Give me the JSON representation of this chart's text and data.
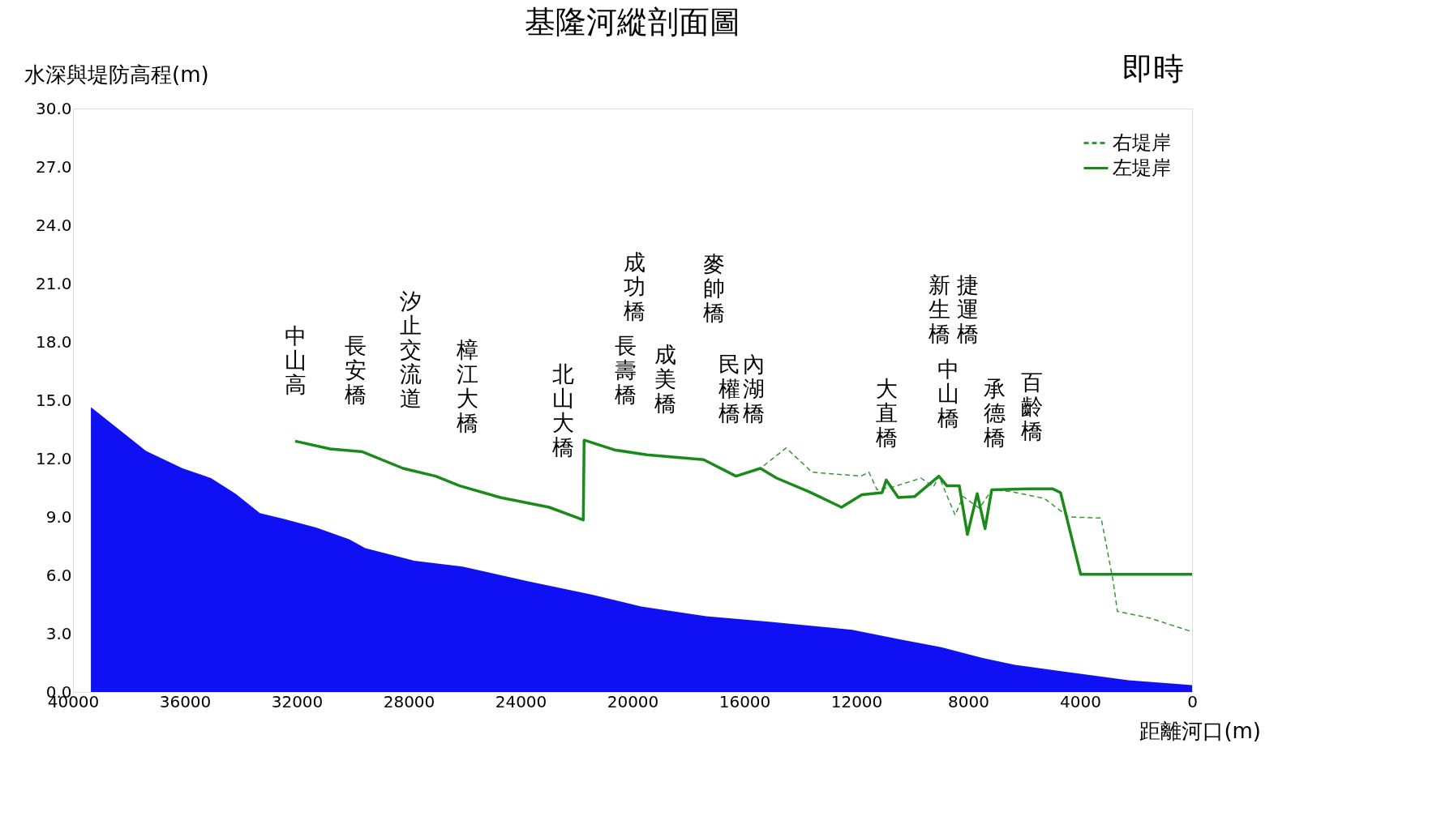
{
  "chart_data": {
    "type": "line",
    "title": "基隆河縱剖面圖",
    "xlabel": "距離河口(m)",
    "ylabel": "水深與堤防高程(m)",
    "xlim": [
      40000,
      0
    ],
    "xticks": [
      40000,
      36000,
      32000,
      28000,
      24000,
      20000,
      16000,
      12000,
      8000,
      4000,
      0
    ],
    "ylim": [
      0,
      30
    ],
    "yticks": [
      {
        "value": 0,
        "label": "0.0"
      },
      {
        "value": 3,
        "label": "3.0"
      },
      {
        "value": 6,
        "label": "6.0"
      },
      {
        "value": 9,
        "label": "9.0"
      },
      {
        "value": 12,
        "label": "12.0"
      },
      {
        "value": 15,
        "label": "15.0"
      },
      {
        "value": 18,
        "label": "18.0"
      },
      {
        "value": 21,
        "label": "21.0"
      },
      {
        "value": 24,
        "label": "24.0"
      },
      {
        "value": 27,
        "label": "27.0"
      },
      {
        "value": 30,
        "label": "30.0"
      }
    ],
    "grid": false,
    "legend": "top right",
    "series": [
      {
        "type": "area",
        "color": "#1010f5",
        "x": [
          39360,
          37390,
          36080,
          35070,
          34190,
          33320,
          32450,
          31290,
          30130,
          29550,
          27810,
          26070,
          23750,
          21430,
          19690,
          17370,
          15050,
          12150,
          10410,
          8960,
          7490,
          6330,
          4590,
          2270,
          0
        ],
        "values": [
          14.65,
          12.4,
          11.5,
          11.0,
          10.2,
          9.2,
          8.9,
          8.45,
          7.85,
          7.4,
          6.75,
          6.45,
          5.7,
          5.0,
          4.4,
          3.9,
          3.6,
          3.2,
          2.7,
          2.3,
          1.75,
          1.4,
          1.05,
          0.6,
          0.35
        ]
      },
      {
        "name": "右堤岸",
        "color": "#339933",
        "line_style": "dashed",
        "x": [
          32060,
          30810,
          29650,
          28200,
          27040,
          26170,
          24720,
          22980,
          21760,
          21730,
          20650,
          19490,
          17460,
          16300,
          15430,
          14510,
          13580,
          11840,
          11550,
          11260,
          10680,
          9690,
          9240,
          9050,
          8470,
          8180,
          7600,
          7160,
          6440,
          5280,
          4410,
          3250,
          2820,
          2670,
          1510,
          0
        ],
        "values": [
          12.9,
          12.5,
          12.35,
          11.5,
          11.1,
          10.6,
          10.0,
          9.5,
          8.85,
          12.95,
          12.45,
          12.2,
          11.95,
          11.1,
          11.5,
          12.55,
          11.3,
          11.1,
          11.3,
          10.4,
          10.55,
          11.0,
          10.55,
          11.1,
          9.1,
          10.05,
          9.45,
          10.4,
          10.3,
          9.95,
          9.0,
          8.95,
          5.7,
          4.15,
          3.8,
          3.1
        ]
      },
      {
        "name": "左堤岸",
        "color": "#1a8a1a",
        "line_style": "solid",
        "x": [
          32060,
          30810,
          29650,
          28200,
          27040,
          26170,
          24720,
          22980,
          21760,
          21730,
          20650,
          19490,
          17460,
          16300,
          15430,
          14850,
          13690,
          12530,
          11800,
          11080,
          10930,
          10500,
          9920,
          9050,
          8760,
          8320,
          8030,
          7680,
          7400,
          7160,
          5860,
          4990,
          4700,
          3980,
          0
        ],
        "values": [
          12.9,
          12.5,
          12.35,
          11.5,
          11.1,
          10.6,
          10.0,
          9.5,
          8.85,
          12.95,
          12.45,
          12.2,
          11.95,
          11.1,
          11.5,
          11.0,
          10.3,
          9.5,
          10.15,
          10.25,
          10.9,
          10.0,
          10.05,
          11.1,
          10.6,
          10.6,
          8.1,
          10.2,
          8.4,
          10.4,
          10.45,
          10.45,
          10.25,
          6.05,
          6.05
        ]
      }
    ],
    "annotations": [
      "即時",
      "中山高",
      "長安橋",
      "汐止交流道",
      "樟江大橋",
      "北山大橋",
      "成功橋",
      "長壽橋",
      "成美橋",
      "麥帥橋",
      "民權橋",
      "內湖橋",
      "大直橋",
      "新生橋",
      "捷運橋",
      "中山橋",
      "承德橋",
      "百齡橋"
    ]
  }
}
